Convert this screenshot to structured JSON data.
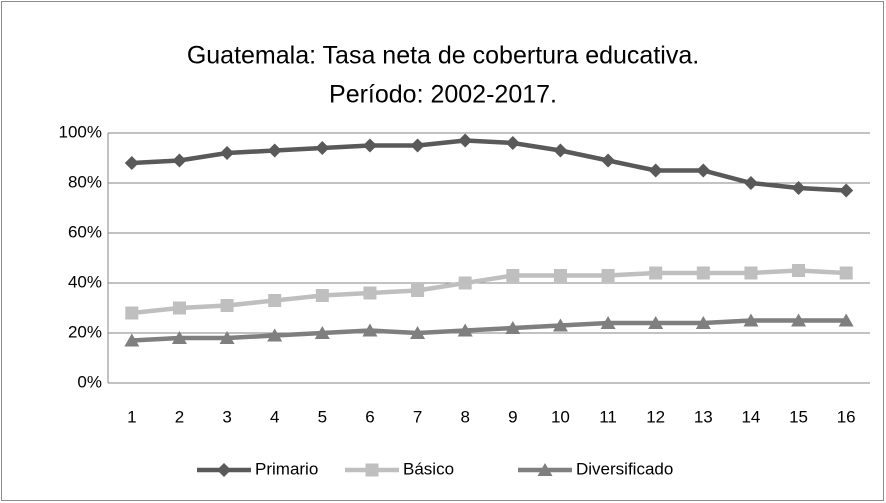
{
  "chart_data": {
    "type": "line",
    "title": [
      "Guatemala: Tasa neta de cobertura educativa.",
      "Período: 2002-2017."
    ],
    "categories": [
      1,
      2,
      3,
      4,
      5,
      6,
      7,
      8,
      9,
      10,
      11,
      12,
      13,
      14,
      15,
      16
    ],
    "series": [
      {
        "name": "Primario",
        "color": "#595959",
        "marker": "diamond",
        "values": [
          88,
          89,
          92,
          93,
          94,
          95,
          95,
          97,
          96,
          93,
          89,
          85,
          85,
          80,
          78,
          77
        ]
      },
      {
        "name": "Básico",
        "color": "#bfbfbf",
        "marker": "square",
        "values": [
          28,
          30,
          31,
          33,
          35,
          36,
          37,
          40,
          43,
          43,
          43,
          44,
          44,
          44,
          45,
          44
        ]
      },
      {
        "name": "Diversificado",
        "color": "#7f7f7f",
        "marker": "triangle",
        "values": [
          17,
          18,
          18,
          19,
          20,
          21,
          20,
          21,
          22,
          23,
          24,
          24,
          24,
          25,
          25,
          25
        ]
      }
    ],
    "ylim": [
      0,
      100
    ],
    "yticks": [
      {
        "value": 0,
        "label": "0%"
      },
      {
        "value": 20,
        "label": "20%"
      },
      {
        "value": 40,
        "label": "40%"
      },
      {
        "value": 60,
        "label": "60%"
      },
      {
        "value": 80,
        "label": "80%"
      },
      {
        "value": 100,
        "label": "100%"
      }
    ],
    "grid": true,
    "legend": "bottom"
  }
}
